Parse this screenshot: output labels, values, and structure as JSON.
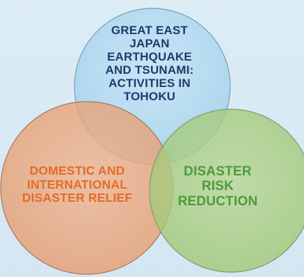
{
  "colors": {
    "background": "#d9eaf3",
    "top_circle_fill": "#b7dcf1",
    "left_circle_fill": "#eba57a",
    "right_circle_fill": "#a9cd80",
    "top_text": "#1f3a6b",
    "left_text": "#e56b28",
    "right_text": "#4e9a3c"
  },
  "circles": {
    "top": {
      "name": "tohoku-activities",
      "lines": [
        "GREAT EAST",
        "JAPAN",
        "EARTHQUAKE",
        "AND TSUNAMI:",
        "ACTIVITIES IN",
        "TOHOKU"
      ]
    },
    "left": {
      "name": "disaster-relief",
      "lines": [
        "DOMESTIC AND",
        "INTERNATIONAL",
        "DISASTER RELIEF"
      ]
    },
    "right": {
      "name": "disaster-risk-reduction",
      "lines": [
        "DISASTER",
        "RISK",
        "REDUCTION"
      ]
    }
  }
}
